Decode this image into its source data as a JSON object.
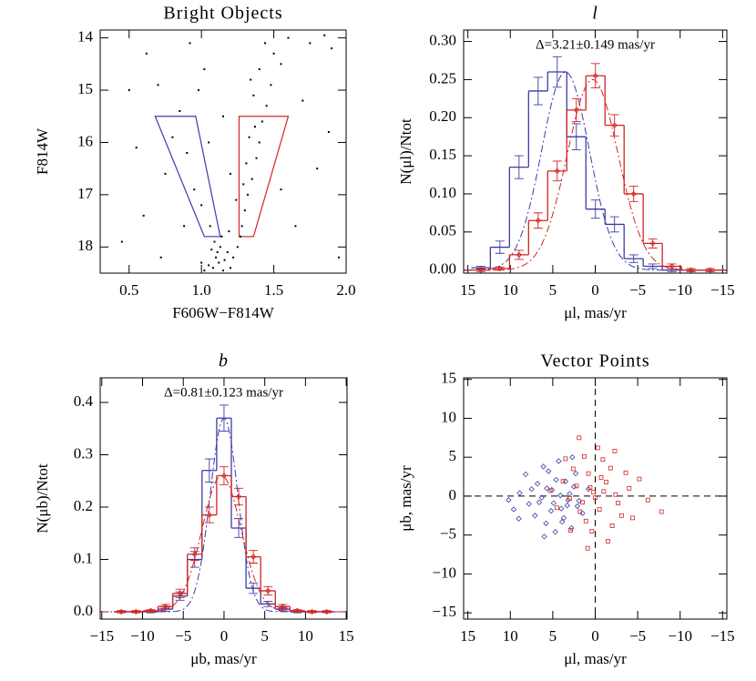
{
  "chart_data": [
    {
      "type": "scatter",
      "title": "Bright Objects",
      "x_label": "F606W−F814W",
      "y_label": "F814W",
      "xlim": [
        0.3,
        2.0
      ],
      "ylim": [
        18.5,
        13.85
      ],
      "xticks": [
        0.5,
        {
          "value": 1,
          "label": "1.0"
        },
        1.5,
        {
          "value": 2,
          "label": "2.0"
        }
      ],
      "yticks": [
        14,
        15,
        16,
        17,
        18
      ],
      "regions": [
        {
          "color": "#3c3ca8",
          "x": [
            0.68,
            0.96,
            1.13,
            1.02
          ],
          "y": [
            15.5,
            15.5,
            17.8,
            17.8
          ]
        },
        {
          "color": "#d42222",
          "x": [
            1.26,
            1.6,
            1.36,
            1.26
          ],
          "y": [
            15.5,
            15.5,
            17.8,
            17.8
          ]
        }
      ],
      "series": [
        {
          "color": "#000000",
          "marker": "dot",
          "x": [
            1.08,
            1.12,
            1.15,
            1.1,
            1.05,
            1.18,
            1.13,
            1.09,
            1.2,
            1.02,
            1.16,
            1.11,
            1.07,
            1.22,
            1.0,
            1.14,
            1.25,
            1.19,
            1.28,
            1.3,
            1.06,
            1.0,
            0.95,
            1.32,
            1.35,
            1.38,
            1.4,
            1.42,
            1.33,
            1.45,
            1.36,
            1.48,
            1.4,
            1.5,
            1.44,
            1.31,
            1.37,
            1.29,
            1.34,
            1.55,
            1.6,
            1.75,
            1.85,
            1.9,
            1.27,
            1.24,
            0.9,
            0.85,
            0.8,
            0.75,
            0.98,
            1.02,
            0.7,
            0.62,
            0.55,
            0.45,
            0.6,
            0.88,
            1.55,
            1.65,
            1.8,
            1.95,
            1.7,
            1.05,
            0.92,
            1.15,
            1.2,
            0.72,
            0.5,
            1.88
          ],
          "values": [
            18.4,
            18.3,
            18.45,
            18.2,
            18.35,
            18.1,
            18.0,
            17.9,
            18.4,
            18.45,
            18.25,
            18.1,
            18.05,
            18.2,
            18.3,
            17.8,
            18.0,
            17.7,
            17.6,
            17.3,
            17.6,
            17.2,
            16.9,
            17.0,
            16.7,
            16.3,
            16.0,
            15.6,
            15.9,
            15.3,
            15.1,
            14.9,
            14.6,
            14.3,
            14.1,
            16.4,
            15.7,
            16.8,
            14.8,
            14.5,
            14.0,
            14.1,
            13.95,
            14.2,
            17.8,
            17.1,
            16.2,
            15.4,
            15.9,
            16.6,
            15.0,
            14.6,
            14.9,
            14.3,
            16.1,
            17.9,
            17.4,
            17.6,
            16.9,
            17.6,
            16.5,
            18.2,
            15.2,
            16.0,
            14.1,
            15.5,
            16.6,
            18.2,
            15.0,
            15.8
          ]
        }
      ]
    },
    {
      "type": "histogram",
      "title": "l",
      "title_italic": true,
      "annotation": "Δ=3.21±0.149 mas/yr",
      "x_label": "μl, mas/yr",
      "y_label": "N(μl)/Ntot",
      "xlim": [
        15.5,
        -15.5
      ],
      "ylim": [
        -0.004,
        0.315
      ],
      "xticks": [
        15,
        10,
        5,
        0,
        {
          "value": -5,
          "label": "−5"
        },
        {
          "value": -10,
          "label": "−10"
        },
        {
          "value": -15,
          "label": "−15"
        }
      ],
      "yticks": [
        {
          "value": 0,
          "label": "0.00"
        },
        {
          "value": 0.05,
          "label": "0.05"
        },
        {
          "value": 0.1,
          "label": "0.10"
        },
        {
          "value": 0.15,
          "label": "0.15"
        },
        {
          "value": 0.2,
          "label": "0.20"
        },
        {
          "value": 0.25,
          "label": "0.25"
        },
        {
          "value": 0.3,
          "label": "0.30"
        }
      ],
      "bins": [
        14.6,
        12.35,
        10.1,
        7.85,
        5.6,
        3.35,
        1.1,
        -1.15,
        -3.4,
        -5.65,
        -7.9,
        -10.15,
        -12.4,
        -14.65
      ],
      "series": [
        {
          "color": "#3c3ca8",
          "marker": "bar",
          "values": [
            0.003,
            0.03,
            0.135,
            0.235,
            0.26,
            0.175,
            0.08,
            0.06,
            0.015,
            0.005,
            0,
            0,
            0
          ],
          "errors": [
            0.002,
            0.008,
            0.015,
            0.018,
            0.02,
            0.017,
            0.012,
            0.01,
            0.005,
            0.003,
            0.002,
            0.002,
            0.002
          ],
          "fit": {
            "mean": 3.5,
            "sigma": 2.8,
            "amplitude": 0.26
          }
        },
        {
          "color": "#d42222",
          "marker": "diamond",
          "values": [
            0,
            0.002,
            0.02,
            0.065,
            0.13,
            0.21,
            0.255,
            0.19,
            0.1,
            0.035,
            0.005,
            0,
            0
          ],
          "errors": [
            0.002,
            0.002,
            0.006,
            0.01,
            0.013,
            0.015,
            0.016,
            0.014,
            0.01,
            0.006,
            0.003,
            0.002,
            0.002
          ],
          "fit": {
            "mean": 0.3,
            "sigma": 3.0,
            "amplitude": 0.25
          }
        }
      ]
    },
    {
      "type": "histogram",
      "title": "b",
      "title_italic": true,
      "annotation": "Δ=0.81±0.123 mas/yr",
      "x_label": "μb, mas/yr",
      "y_label": "N(μb)/Ntot",
      "xlim": [
        -15.2,
        15.1
      ],
      "ylim": [
        -0.014,
        0.447
      ],
      "xticks": [
        {
          "value": -15,
          "label": "−15"
        },
        {
          "value": -10,
          "label": "−10"
        },
        {
          "value": -5,
          "label": "−5"
        },
        0,
        5,
        10,
        15
      ],
      "yticks": [
        {
          "value": 0,
          "label": "0.0"
        },
        0.1,
        0.2,
        0.3,
        0.4
      ],
      "bins": [
        -13.5,
        -11.7,
        -9.9,
        -8.1,
        -6.3,
        -4.5,
        -2.7,
        -0.9,
        0.9,
        2.7,
        4.5,
        6.3,
        8.1,
        9.9,
        11.7,
        13.5
      ],
      "series": [
        {
          "color": "#3c3ca8",
          "marker": "bar",
          "values": [
            0,
            0,
            0,
            0.005,
            0.03,
            0.1,
            0.27,
            0.37,
            0.16,
            0.045,
            0.015,
            0.005,
            0,
            0,
            0
          ],
          "errors": [
            0.002,
            0.002,
            0.002,
            0.004,
            0.008,
            0.015,
            0.022,
            0.025,
            0.018,
            0.01,
            0.005,
            0.003,
            0.002,
            0.002,
            0.002
          ],
          "fit": {
            "mean": 0,
            "sigma": 1.7,
            "amplitude": 0.37
          }
        },
        {
          "color": "#d42222",
          "marker": "diamond",
          "values": [
            0,
            0,
            0.002,
            0.01,
            0.035,
            0.11,
            0.185,
            0.26,
            0.22,
            0.105,
            0.04,
            0.01,
            0.002,
            0,
            0
          ],
          "errors": [
            0.002,
            0.002,
            0.002,
            0.004,
            0.008,
            0.012,
            0.015,
            0.017,
            0.016,
            0.012,
            0.008,
            0.004,
            0.002,
            0.002,
            0.002
          ],
          "fit": {
            "mean": -0.3,
            "sigma": 2.4,
            "amplitude": 0.26
          }
        }
      ]
    },
    {
      "type": "scatter",
      "title": "Vector Points",
      "x_label": "μl, mas/yr",
      "y_label": "μb, mas/yr",
      "zero_lines": true,
      "xlim": [
        15.5,
        -15.5
      ],
      "ylim": [
        -15.8,
        15.2
      ],
      "xticks": [
        15,
        10,
        5,
        0,
        {
          "value": -5,
          "label": "−5"
        },
        {
          "value": -10,
          "label": "−10"
        },
        {
          "value": -15,
          "label": "−15"
        }
      ],
      "yticks": [
        {
          "value": -15,
          "label": "−15"
        },
        {
          "value": -10,
          "label": "−10"
        },
        {
          "value": -5,
          "label": "−5"
        },
        0,
        5,
        10,
        15
      ],
      "series": [
        {
          "color": "#3c3ca8",
          "marker": "diamond",
          "x": [
            3.2,
            5.1,
            4.0,
            6.3,
            2.5,
            7.8,
            4.6,
            3.7,
            5.8,
            8.9,
            2.1,
            4.9,
            6.8,
            3.0,
            5.5,
            1.5,
            7.1,
            9.6,
            4.3,
            2.8,
            6.0,
            3.5,
            8.2,
            5.2,
            0.8,
            4.1,
            6.6,
            2.3,
            7.5,
            3.9,
            10.2,
            5.7,
            1.9,
            4.7,
            9.0,
            6.1,
            3.3,
            2.7
          ],
          "values": [
            -0.5,
            0.8,
            -1.6,
            -0.2,
            1.2,
            -1.0,
            2.1,
            -2.8,
            -3.5,
            0.4,
            -1.3,
            -0.9,
            1.6,
            0.3,
            3.2,
            -2.2,
            -2.5,
            -1.7,
            4.5,
            -4.1,
            -5.2,
            1.9,
            2.8,
            -1.9,
            0.9,
            0.1,
            -0.8,
            2.9,
            0.9,
            -3.3,
            -0.5,
            1.0,
            -0.6,
            -4.6,
            -2.9,
            3.8,
            -1.2,
            5.0
          ]
        },
        {
          "color": "#d42222",
          "marker": "square",
          "x": [
            0.2,
            -1.3,
            1.5,
            -2.4,
            0.8,
            -0.5,
            2.2,
            -3.1,
            -1.8,
            1.1,
            -4.0,
            3.0,
            -0.9,
            0.4,
            -2.7,
            2.6,
            -5.2,
            1.8,
            -1.0,
            0.0,
            -3.6,
            3.8,
            -0.3,
            1.3,
            -2.0,
            4.5,
            -6.2,
            0.6,
            -1.5,
            2.9,
            -4.4,
            -0.7,
            5.3,
            -7.8,
            1.9,
            -2.3,
            0.9,
            3.5
          ],
          "values": [
            0.5,
            1.8,
            -0.8,
            0.2,
            2.9,
            -1.7,
            1.3,
            -2.5,
            3.6,
            -3.2,
            1.0,
            -0.3,
            4.7,
            -4.5,
            -0.9,
            3.5,
            2.2,
            -2.0,
            0.6,
            -0.2,
            3.0,
            1.9,
            6.2,
            5.1,
            -3.8,
            -1.5,
            -0.5,
            1.1,
            -5.8,
            -4.4,
            -2.8,
            2.4,
            0.7,
            -2.0,
            7.5,
            5.8,
            -6.7,
            4.8
          ]
        }
      ]
    }
  ]
}
